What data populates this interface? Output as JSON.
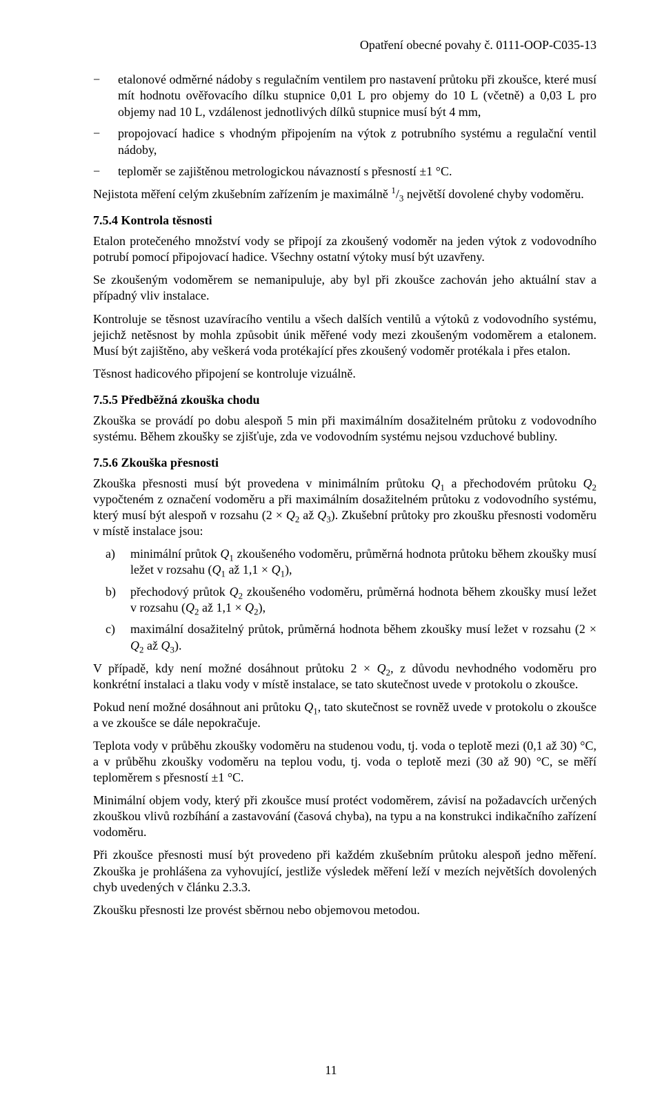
{
  "header": {
    "reference": "Opatření obecné povahy č. 0111-OOP-C035-13"
  },
  "bullets": [
    "etalonové odměrné nádoby s regulačním ventilem pro nastavení průtoku při zkoušce, které musí mít hodnotu ověřovacího dílku stupnice 0,01 L pro objemy do 10 L (včetně) a 0,03 L pro objemy nad 10 L, vzdálenost jednotlivých dílků stupnice musí být 4 mm,",
    "propojovací hadice s vhodným připojením na výtok z potrubního systému a regulační ventil nádoby,",
    "teploměr se zajištěnou metrologickou návazností s přesností ±1 °C."
  ],
  "p_uncertainty_pre": "Nejistota měření celým zkušebním zařízením je maximálně ",
  "p_uncertainty_post": " největší dovolené chyby vodoměru.",
  "sec754": {
    "title": "7.5.4  Kontrola těsnosti",
    "p1": "Etalon protečeného množství vody se připojí za zkoušený vodoměr na jeden výtok z vodovodního potrubí pomocí připojovací hadice. Všechny ostatní výtoky musí být uzavřeny.",
    "p2": "Se zkoušeným vodoměrem se nemanipuluje, aby byl při zkoušce zachován jeho aktuální stav a případný vliv instalace.",
    "p3": "Kontroluje se těsnost uzavíracího ventilu a všech dalších ventilů a výtoků z vodovodního systému, jejichž netěsnost by mohla způsobit únik měřené vody mezi zkoušeným vodoměrem a etalonem. Musí být zajištěno, aby veškerá voda protékající přes zkoušený vodoměr protékala i přes etalon.",
    "p4": "Těsnost hadicového připojení se kontroluje vizuálně."
  },
  "sec755": {
    "title": "7.5.5  Předběžná zkouška chodu",
    "p1": "Zkouška se provádí po dobu alespoň 5 min při maximálním dosažitelném průtoku z vodovodního systému. Během zkoušky se zjišťuje, zda ve vodovodním systému nejsou vzduchové bubliny."
  },
  "sec756": {
    "title": "7.5.6  Zkouška přesnosti",
    "p1_pre": "Zkouška přesnosti musí být provedena v minimálním průtoku ",
    "p1_mid1": " a přechodovém průtoku ",
    "p1_mid2": " vypočteném z označení vodoměru a při maximálním dosažitelném průtoku z vodovodního systému, který musí být alespoň v rozsahu (2 × ",
    "p1_mid3": " až ",
    "p1_post": "). Zkušební průtoky pro zkoušku přesnosti vodoměru v místě instalace jsou:",
    "items": [
      {
        "marker": "a)",
        "pre": "minimální průtok ",
        "mid1": " zkoušeného vodoměru, průměrná hodnota průtoku během zkoušky musí ležet v rozsahu (",
        "mid2": " až 1,1 × ",
        "post": "),"
      },
      {
        "marker": "b)",
        "pre": "přechodový průtok ",
        "mid1": " zkoušeného vodoměru, průměrná hodnota během zkoušky musí ležet v rozsahu (",
        "mid2": " až 1,1 × ",
        "post": "),"
      },
      {
        "marker": "c)",
        "pre": "maximální dosažitelný průtok, průměrná hodnota během zkoušky musí ležet v rozsahu (2 × ",
        "mid1": " až ",
        "post": ")."
      }
    ],
    "p2_pre": "V případě, kdy není možné dosáhnout průtoku 2 × ",
    "p2_post": ", z důvodu nevhodného vodoměru pro konkrétní instalaci a tlaku vody v místě instalace, se tato skutečnost uvede v protokolu o zkoušce.",
    "p3_pre": "Pokud není možné dosáhnout ani průtoku ",
    "p3_post": ", tato skutečnost se rovněž uvede v protokolu o zkoušce a ve zkoušce se dále nepokračuje.",
    "p4": "Teplota vody v průběhu zkoušky vodoměru na studenou vodu, tj. voda o teplotě mezi (0,1 až 30) °C, a v průběhu zkoušky vodoměru na teplou vodu, tj. voda o teplotě mezi (30 až 90) °C, se měří teploměrem s přesností ±1 °C.",
    "p5": "Minimální objem vody, který při zkoušce musí protéct vodoměrem, závisí na požadavcích určených zkouškou vlivů rozbíhání a zastavování (časová chyba), na typu a na konstrukci indikačního zařízení vodoměru.",
    "p6": "Při zkoušce přesnosti musí být provedeno při každém zkušebním průtoku alespoň jedno měření. Zkouška je prohlášena za vyhovující, jestliže výsledek měření leží v mezích největších dovolených chyb uvedených v článku 2.3.3.",
    "p7": "Zkoušku přesnosti lze provést sběrnou nebo objemovou metodou."
  },
  "page_number": "11"
}
